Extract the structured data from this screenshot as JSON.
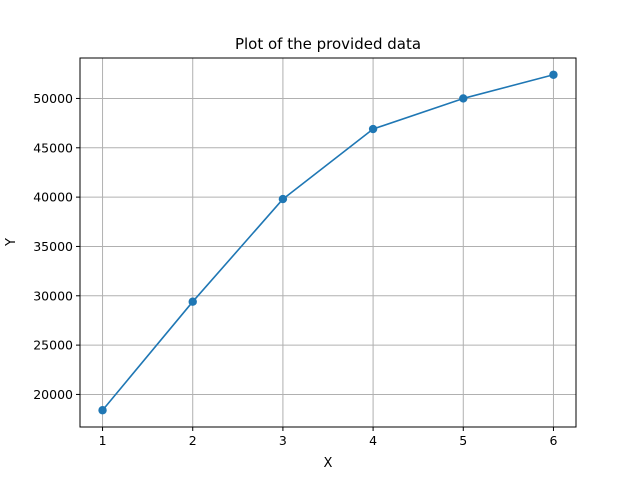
{
  "chart_data": {
    "type": "line",
    "title": "Plot of the provided data",
    "xlabel": "X",
    "ylabel": "Y",
    "x": [
      1,
      2,
      3,
      4,
      5,
      6
    ],
    "series": [
      {
        "values": [
          18400,
          29400,
          39800,
          46900,
          50000,
          52400
        ],
        "marker": "circle"
      }
    ],
    "xlim": [
      0.75,
      6.25
    ],
    "ylim": [
      16700,
      54100
    ],
    "xticks": [
      1,
      2,
      3,
      4,
      5,
      6
    ],
    "yticks": [
      20000,
      25000,
      30000,
      35000,
      40000,
      45000,
      50000
    ],
    "grid": true,
    "legend": "none",
    "colors": {
      "line": "#1f77b4",
      "grid": "#b0b0b0",
      "axis": "#000000"
    }
  }
}
